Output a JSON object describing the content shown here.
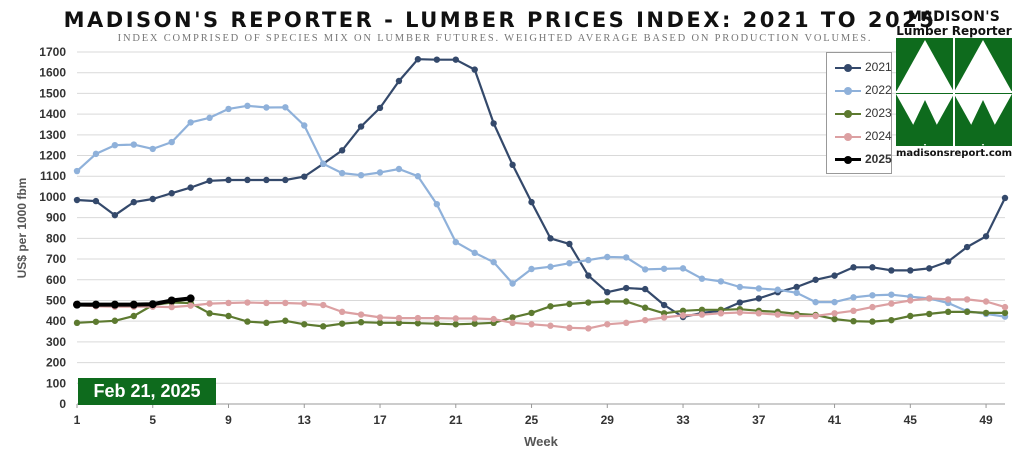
{
  "header": {
    "title": "MADISON'S REPORTER - LUMBER PRICES INDEX: 2021 TO 2025",
    "subtitle": "INDEX COMPRISED OF SPECIES MIX ON LUMBER FUTURES. WEIGHTED AVERAGE BASED ON PRODUCTION VOLUMES."
  },
  "logo": {
    "name_line1": "MADISON'S",
    "name_line2": "Lumber Reporter",
    "url": "madisonsreport.com",
    "color": "#0e6b1d"
  },
  "date_badge": "Feb 21, 2025",
  "chart_data": {
    "type": "line",
    "xlabel": "Week",
    "ylabel": "US$ per 1000 fbm",
    "xlim": [
      1,
      50
    ],
    "ylim": [
      0,
      1700
    ],
    "x_ticks": [
      1,
      5,
      9,
      13,
      17,
      21,
      25,
      29,
      33,
      37,
      41,
      45,
      49
    ],
    "y_ticks": [
      0,
      100,
      200,
      300,
      400,
      500,
      600,
      700,
      800,
      900,
      1000,
      1100,
      1200,
      1300,
      1400,
      1500,
      1600,
      1700
    ],
    "grid": "horizontal",
    "legend_position": "top-right",
    "series": [
      {
        "name": "2021",
        "color": "#34496b",
        "x": [
          1,
          2,
          3,
          4,
          5,
          6,
          7,
          8,
          9,
          10,
          11,
          12,
          13,
          14,
          15,
          16,
          17,
          18,
          19,
          20,
          21,
          22,
          23,
          24,
          25,
          26,
          27,
          28,
          29,
          30,
          31,
          32,
          33,
          34,
          35,
          36,
          37,
          38,
          39,
          40,
          41,
          42,
          43,
          44,
          45,
          46,
          47,
          48,
          49,
          50
        ],
        "values": [
          985,
          980,
          912,
          975,
          990,
          1018,
          1045,
          1078,
          1082,
          1082,
          1082,
          1082,
          1098,
          1160,
          1225,
          1340,
          1430,
          1560,
          1665,
          1663,
          1663,
          1615,
          1355,
          1155,
          975,
          800,
          773,
          620,
          540,
          560,
          555,
          478,
          420,
          440,
          450,
          490,
          510,
          540,
          565,
          600,
          620,
          660,
          660,
          645,
          645,
          655,
          688,
          758,
          810,
          995
        ]
      },
      {
        "name": "2022",
        "color": "#8fb1da",
        "x": [
          1,
          2,
          3,
          4,
          5,
          6,
          7,
          8,
          9,
          10,
          11,
          12,
          13,
          14,
          15,
          16,
          17,
          18,
          19,
          20,
          21,
          22,
          23,
          24,
          25,
          26,
          27,
          28,
          29,
          30,
          31,
          32,
          33,
          34,
          35,
          36,
          37,
          38,
          39,
          40,
          41,
          42,
          43,
          44,
          45,
          46,
          47,
          48,
          49,
          50
        ],
        "values": [
          1125,
          1208,
          1250,
          1253,
          1232,
          1265,
          1360,
          1382,
          1425,
          1440,
          1432,
          1433,
          1345,
          1160,
          1115,
          1105,
          1118,
          1135,
          1100,
          965,
          782,
          730,
          685,
          582,
          652,
          663,
          680,
          695,
          710,
          708,
          650,
          653,
          655,
          605,
          592,
          565,
          558,
          552,
          537,
          492,
          492,
          515,
          525,
          528,
          518,
          510,
          488,
          448,
          435,
          422
        ]
      },
      {
        "name": "2023",
        "color": "#5d7a30",
        "x": [
          1,
          2,
          3,
          4,
          5,
          6,
          7,
          8,
          9,
          10,
          11,
          12,
          13,
          14,
          15,
          16,
          17,
          18,
          19,
          20,
          21,
          22,
          23,
          24,
          25,
          26,
          27,
          28,
          29,
          30,
          31,
          32,
          33,
          34,
          35,
          36,
          37,
          38,
          39,
          40,
          41,
          42,
          43,
          44,
          45,
          46,
          47,
          48,
          49,
          50
        ],
        "values": [
          392,
          397,
          402,
          425,
          478,
          490,
          488,
          438,
          425,
          398,
          392,
          402,
          385,
          375,
          388,
          395,
          392,
          392,
          390,
          388,
          385,
          388,
          392,
          418,
          440,
          472,
          483,
          490,
          495,
          495,
          465,
          438,
          450,
          455,
          455,
          458,
          450,
          445,
          435,
          430,
          410,
          400,
          398,
          405,
          425,
          435,
          445,
          445,
          440,
          440
        ]
      },
      {
        "name": "2024",
        "color": "#dca0a2",
        "x": [
          1,
          2,
          3,
          4,
          5,
          6,
          7,
          8,
          9,
          10,
          11,
          12,
          13,
          14,
          15,
          16,
          17,
          18,
          19,
          20,
          21,
          22,
          23,
          24,
          25,
          26,
          27,
          28,
          29,
          30,
          31,
          32,
          33,
          34,
          35,
          36,
          37,
          38,
          39,
          40,
          41,
          42,
          43,
          44,
          45,
          46,
          47,
          48,
          49,
          50
        ],
        "values": [
          478,
          472,
          470,
          470,
          470,
          468,
          475,
          485,
          488,
          490,
          488,
          488,
          485,
          478,
          445,
          432,
          418,
          415,
          415,
          415,
          413,
          413,
          410,
          392,
          385,
          378,
          368,
          365,
          385,
          392,
          405,
          418,
          428,
          432,
          438,
          442,
          438,
          432,
          425,
          425,
          438,
          450,
          468,
          485,
          500,
          510,
          505,
          505,
          495,
          468
        ]
      },
      {
        "name": "2025",
        "color": "#000000",
        "x": [
          1,
          2,
          3,
          4,
          5,
          6,
          7
        ],
        "values": [
          480,
          480,
          480,
          480,
          482,
          500,
          510
        ]
      }
    ]
  }
}
